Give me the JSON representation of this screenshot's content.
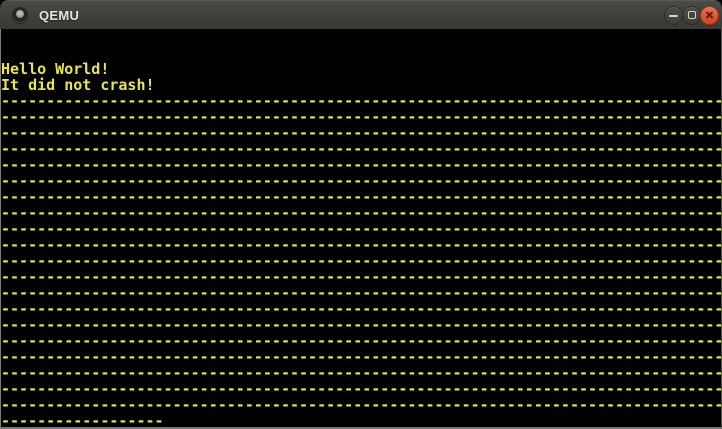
{
  "window": {
    "title": "QEMU",
    "icon": "qemu-window-icon",
    "controls": {
      "minimize_label": "minimize",
      "maximize_label": "maximize",
      "close_label": "close"
    }
  },
  "colors": {
    "terminal_foreground": "#e8e44f",
    "terminal_background": "#000000",
    "titlebar_background": "#413f3b",
    "close_button": "#e05434",
    "window_border": "#7d7b76"
  },
  "screen": {
    "columns": 80,
    "rows": 25,
    "lines": [
      "",
      "",
      "Hello World!",
      "It did not crash!",
      "--------------------------------------------------------------------------------",
      "--------------------------------------------------------------------------------",
      "--------------------------------------------------------------------------------",
      "--------------------------------------------------------------------------------",
      "--------------------------------------------------------------------------------",
      "--------------------------------------------------------------------------------",
      "--------------------------------------------------------------------------------",
      "--------------------------------------------------------------------------------",
      "--------------------------------------------------------------------------------",
      "--------------------------------------------------------------------------------",
      "--------------------------------------------------------------------------------",
      "--------------------------------------------------------------------------------",
      "--------------------------------------------------------------------------------",
      "--------------------------------------------------------------------------------",
      "--------------------------------------------------------------------------------",
      "--------------------------------------------------------------------------------",
      "--------------------------------------------------------------------------------",
      "--------------------------------------------------------------------------------",
      "--------------------------------------------------------------------------------",
      "--------------------------------------------------------------------------------",
      "------------------"
    ]
  }
}
